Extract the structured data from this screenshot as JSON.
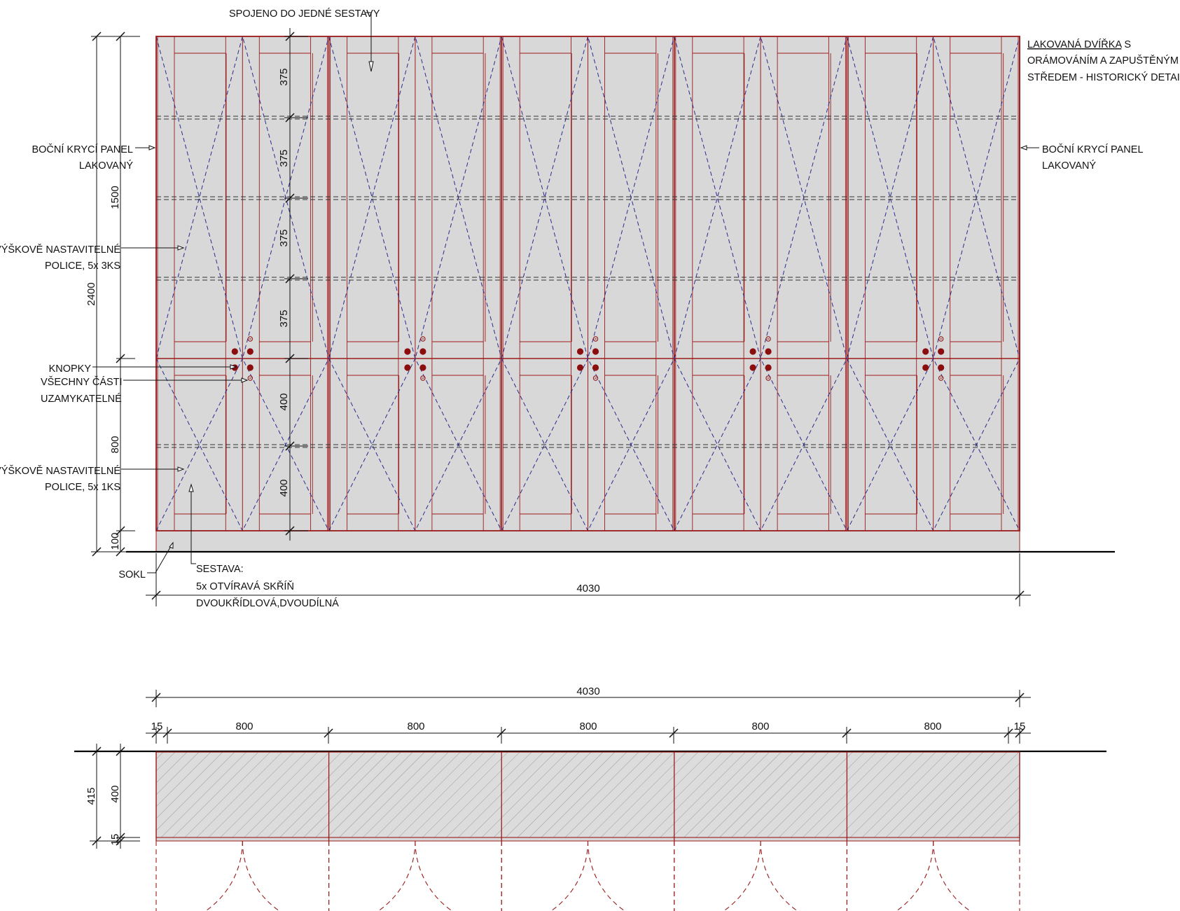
{
  "labels": {
    "joined": "SPOJENO DO JEDNÉ SESTAVY",
    "lacquered_doors_1a": "LAKOVANÁ DVÍŘKA",
    "lacquered_doors_1b": " S",
    "lacquered_doors_2": "ORÁMOVÁNÍM A ZAPUŠTĚNÝM",
    "lacquered_doors_3": "STŘEDEM - HISTORICKÝ DETAIL",
    "side_panel_left_1": "BOČNÍ KRYCÍ PANEL",
    "side_panel_left_2": "LAKOVANÝ",
    "side_panel_right_1": "BOČNÍ KRYCÍ PANEL",
    "side_panel_right_2": "LAKOVANÝ",
    "shelves_upper_1": "VÝŠKOVĚ NASTAVITELNÉ",
    "shelves_upper_2": "POLICE, 5x 3KS",
    "knobs": "KNOPKY",
    "lockable_1": "VŠECHNY ČÁSTI",
    "lockable_2": "UZAMYKATELNÉ",
    "shelves_lower_1": "VÝŠKOVĚ NASTAVITELNÉ",
    "shelves_lower_2": "POLICE, 5x 1KS",
    "plinth": "SOKL",
    "assembly_1": "SESTAVA:",
    "assembly_2": "5x OTVÍRAVÁ SKŘÍŇ",
    "assembly_3": "DVOUKŘÍDLOVÁ,DVOUDÍLNÁ"
  },
  "elevation_dims": {
    "total_height": "2400",
    "upper_height": "1500",
    "lower_height": "800",
    "plinth_height": "100",
    "upper_rows": [
      "375",
      "375",
      "375",
      "375"
    ],
    "lower_rows": [
      "400",
      "400"
    ],
    "total_width": "4030"
  },
  "plan_dims": {
    "total_width": "4030",
    "edge_left": "15",
    "edge_right": "15",
    "units": [
      "800",
      "800",
      "800",
      "800",
      "800"
    ],
    "depth_total": "415",
    "depth_body": "400",
    "depth_door": "15"
  },
  "colors": {
    "cabinet_line": "#9b1b1b",
    "fill": "#d8d8d8",
    "diagonal": "#2b2b8f",
    "knob": "#8b0d0d",
    "dim_line": "#111111",
    "shelf_dash": "#333333"
  }
}
